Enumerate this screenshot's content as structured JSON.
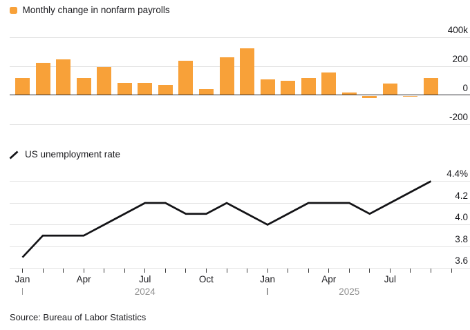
{
  "colors": {
    "background": "#FFFFFF",
    "bar": "#F8A139",
    "line": "#131316",
    "grid": "#E2E2E2",
    "zero_axis": "#26262B",
    "text": "#19191D",
    "muted_text": "#8F8F8F",
    "tick": "#3C3C3C"
  },
  "source_note": "Source: Bureau of Labor Statistics",
  "chart_data": [
    {
      "type": "bar",
      "title": "Monthly change in nonfarm payrolls",
      "unit": "thousands of jobs",
      "legend_swatch": "orange-square-icon",
      "grid": "on",
      "legend_position": "top-left",
      "categories": [
        "Jan 2024",
        "Feb 2024",
        "Mar 2024",
        "Apr 2024",
        "May 2024",
        "Jun 2024",
        "Jul 2024",
        "Aug 2024",
        "Sep 2024",
        "Oct 2024",
        "Nov 2024",
        "Dec 2024",
        "Jan 2025",
        "Feb 2025",
        "Mar 2025",
        "Apr 2025",
        "May 2025",
        "Jun 2025",
        "Jul 2025",
        "Aug 2025",
        "Sep 2025"
      ],
      "values": [
        119,
        222,
        246,
        118,
        193,
        87,
        88,
        71,
        240,
        44,
        261,
        323,
        111,
        102,
        120,
        158,
        19,
        -13,
        79,
        -4,
        119
      ],
      "ylim": [
        -280,
        480
      ],
      "yticks": [
        {
          "value": 400,
          "label": "400k"
        },
        {
          "value": 200,
          "label": "200"
        },
        {
          "value": 0,
          "label": "0"
        },
        {
          "value": -200,
          "label": "-200"
        }
      ]
    },
    {
      "type": "line",
      "title": "US unemployment rate",
      "unit": "percent",
      "legend_swatch": "diagonal-line-icon",
      "grid": "on",
      "legend_position": "top-left",
      "categories": [
        "Jan 2024",
        "Feb 2024",
        "Mar 2024",
        "Apr 2024",
        "May 2024",
        "Jun 2024",
        "Jul 2024",
        "Aug 2024",
        "Sep 2024",
        "Oct 2024",
        "Nov 2024",
        "Dec 2024",
        "Jan 2025",
        "Feb 2025",
        "Mar 2025",
        "Apr 2025",
        "May 2025",
        "Jun 2025",
        "Jul 2025",
        "Aug 2025",
        "Sep 2025"
      ],
      "values": [
        3.7,
        3.9,
        3.9,
        3.9,
        4.0,
        4.1,
        4.2,
        4.2,
        4.1,
        4.1,
        4.2,
        4.1,
        4.0,
        4.1,
        4.2,
        4.2,
        4.2,
        4.1,
        4.2,
        4.3,
        4.4
      ],
      "ylim": [
        3.5,
        4.5
      ],
      "yticks": [
        {
          "value": 4.4,
          "label": "4.4%"
        },
        {
          "value": 4.2,
          "label": "4.2"
        },
        {
          "value": 4.0,
          "label": "4.0"
        },
        {
          "value": 3.8,
          "label": "3.8"
        },
        {
          "value": 3.6,
          "label": "3.6"
        }
      ]
    }
  ],
  "x_axis": {
    "minor_tick_count": 22,
    "tick_labels": [
      {
        "index": 0,
        "label": "Jan"
      },
      {
        "index": 3,
        "label": "Apr"
      },
      {
        "index": 6,
        "label": "Jul"
      },
      {
        "index": 9,
        "label": "Oct"
      },
      {
        "index": 12,
        "label": "Jan"
      },
      {
        "index": 15,
        "label": "Apr"
      },
      {
        "index": 18,
        "label": "Jul"
      }
    ],
    "years": [
      {
        "label": "2024",
        "start_index": 0,
        "label_index": 6
      },
      {
        "label": "2025",
        "start_index": 12,
        "label_index": 16
      }
    ]
  }
}
